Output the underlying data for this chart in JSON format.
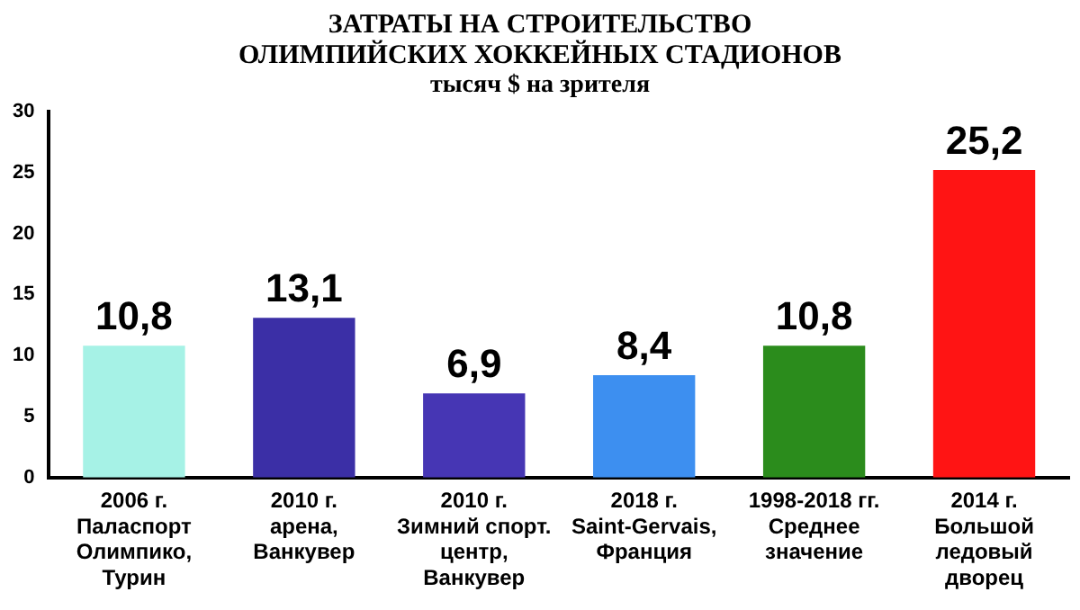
{
  "chart_data": {
    "type": "bar",
    "title": "ЗАТРАТЫ НА СТРОИТЕЛЬСТВО\nОЛИМПИЙСКИХ ХОККЕЙНЫХ СТАДИОНОВ",
    "subtitle": "тысяч $ на зрителя",
    "categories": [
      "2006 г.\nПаласпорт\nОлимпико,\nТурин",
      "2010 г.\nарена,\nВанкувер",
      "2010 г.\nЗимний спорт.\nцентр,\nВанкувер",
      "2018 г.\nSaint-Gervais,\nФранция",
      "1998-2018 гг.\nСреднее\nзначение",
      "2014 г.\nБольшой\nледовый\nдворец"
    ],
    "values": [
      10.8,
      13.1,
      6.9,
      8.4,
      10.8,
      25.2
    ],
    "colors": [
      "#a6f2e6",
      "#3b2fa6",
      "#4636b4",
      "#3d8ff0",
      "#2b8c1c",
      "#ff1414"
    ],
    "value_labels": [
      "10,8",
      "13,1",
      "6,9",
      "8,4",
      "10,8",
      "25,2"
    ],
    "ylim": [
      0,
      30
    ],
    "yticks": [
      0,
      5,
      10,
      15,
      20,
      25,
      30
    ],
    "grid": false,
    "legend": false
  }
}
